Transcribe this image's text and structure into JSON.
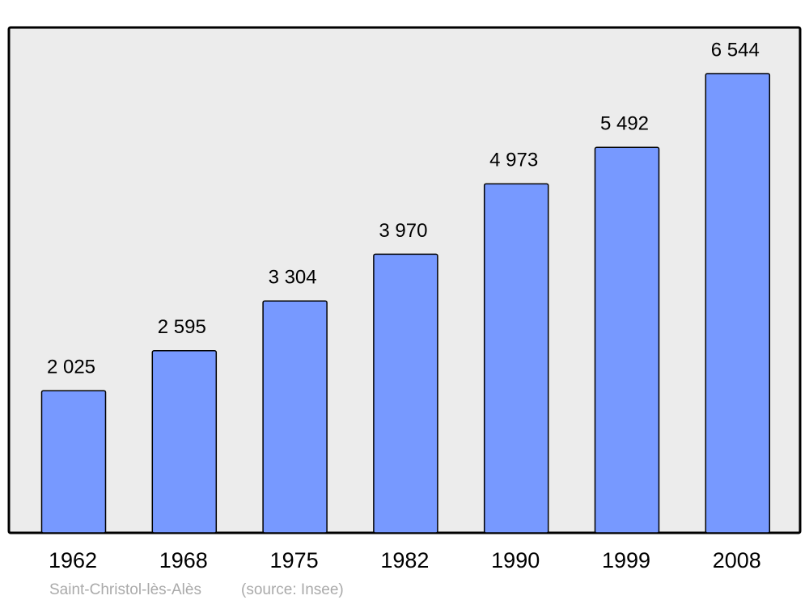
{
  "chart_data": {
    "type": "bar",
    "title": "Saint-Christol-lès-Alès",
    "source": "(source: Insee)",
    "categories": [
      "1962",
      "1968",
      "1975",
      "1982",
      "1990",
      "1999",
      "2008"
    ],
    "values": [
      2025,
      2595,
      3304,
      3970,
      4973,
      5492,
      6544
    ],
    "value_labels": [
      "2 025",
      "2 595",
      "3 304",
      "3 970",
      "4 973",
      "5 492",
      "6 544"
    ],
    "color": "#7799ff"
  }
}
